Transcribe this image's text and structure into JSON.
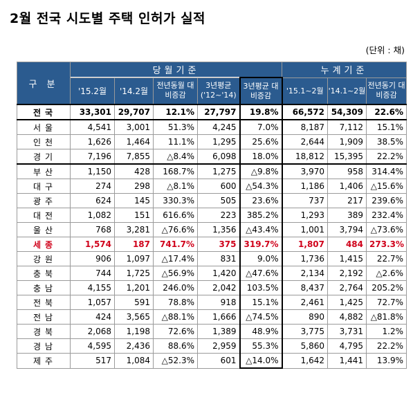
{
  "title": "2월 전국 시도별 주택 인허가 실적",
  "unit": "(단위 : 채)",
  "header": {
    "category": "구   분",
    "monthly_group": "당월기준",
    "cumulative_group": "누계기준",
    "cols": [
      "'15.2월",
      "'14.2월",
      "전년동월 대비증감",
      "3년평균 ('12~'14)",
      "3년평균 대비증감",
      "'15.1~2월",
      "'14.1~2월",
      "전년동기 대비증감"
    ]
  },
  "rows": [
    {
      "region": "전국",
      "v": [
        "33,301",
        "29,707",
        "12.1%",
        "27,797",
        "19.8%",
        "66,572",
        "54,309",
        "22.6%"
      ]
    },
    {
      "region": "서울",
      "v": [
        "4,541",
        "3,001",
        "51.3%",
        "4,245",
        "7.0%",
        "8,187",
        "7,112",
        "15.1%"
      ]
    },
    {
      "region": "인천",
      "v": [
        "1,626",
        "1,464",
        "11.1%",
        "1,295",
        "25.6%",
        "2,644",
        "1,909",
        "38.5%"
      ]
    },
    {
      "region": "경기",
      "v": [
        "7,196",
        "7,855",
        "△8.4%",
        "6,098",
        "18.0%",
        "18,812",
        "15,395",
        "22.2%"
      ]
    },
    {
      "region": "부산",
      "v": [
        "1,150",
        "428",
        "168.7%",
        "1,275",
        "△9.8%",
        "3,970",
        "958",
        "314.4%"
      ]
    },
    {
      "region": "대구",
      "v": [
        "274",
        "298",
        "△8.1%",
        "600",
        "△54.3%",
        "1,186",
        "1,406",
        "△15.6%"
      ]
    },
    {
      "region": "광주",
      "v": [
        "624",
        "145",
        "330.3%",
        "505",
        "23.6%",
        "737",
        "217",
        "239.6%"
      ]
    },
    {
      "region": "대전",
      "v": [
        "1,082",
        "151",
        "616.6%",
        "223",
        "385.2%",
        "1,293",
        "389",
        "232.4%"
      ]
    },
    {
      "region": "울산",
      "v": [
        "768",
        "3,281",
        "△76.6%",
        "1,356",
        "△43.4%",
        "1,001",
        "3,794",
        "△73.6%"
      ]
    },
    {
      "region": "세종",
      "v": [
        "1,574",
        "187",
        "741.7%",
        "375",
        "319.7%",
        "1,807",
        "484",
        "273.3%"
      ]
    },
    {
      "region": "강원",
      "v": [
        "906",
        "1,097",
        "△17.4%",
        "831",
        "9.0%",
        "1,736",
        "1,415",
        "22.7%"
      ]
    },
    {
      "region": "충북",
      "v": [
        "744",
        "1,725",
        "△56.9%",
        "1,420",
        "△47.6%",
        "2,134",
        "2,192",
        "△2.6%"
      ]
    },
    {
      "region": "충남",
      "v": [
        "4,155",
        "1,201",
        "246.0%",
        "2,042",
        "103.5%",
        "8,437",
        "2,764",
        "205.2%"
      ]
    },
    {
      "region": "전북",
      "v": [
        "1,057",
        "591",
        "78.8%",
        "918",
        "15.1%",
        "2,461",
        "1,425",
        "72.7%"
      ]
    },
    {
      "region": "전남",
      "v": [
        "424",
        "3,565",
        "△88.1%",
        "1,666",
        "△74.5%",
        "890",
        "4,882",
        "△81.8%"
      ]
    },
    {
      "region": "경북",
      "v": [
        "2,068",
        "1,198",
        "72.6%",
        "1,389",
        "48.9%",
        "3,775",
        "3,731",
        "1.2%"
      ]
    },
    {
      "region": "경남",
      "v": [
        "4,595",
        "2,436",
        "88.6%",
        "2,959",
        "55.3%",
        "5,860",
        "4,795",
        "22.2%"
      ]
    },
    {
      "region": "제주",
      "v": [
        "517",
        "1,084",
        "△52.3%",
        "601",
        "△14.0%",
        "1,642",
        "1,441",
        "13.9%"
      ]
    }
  ]
}
